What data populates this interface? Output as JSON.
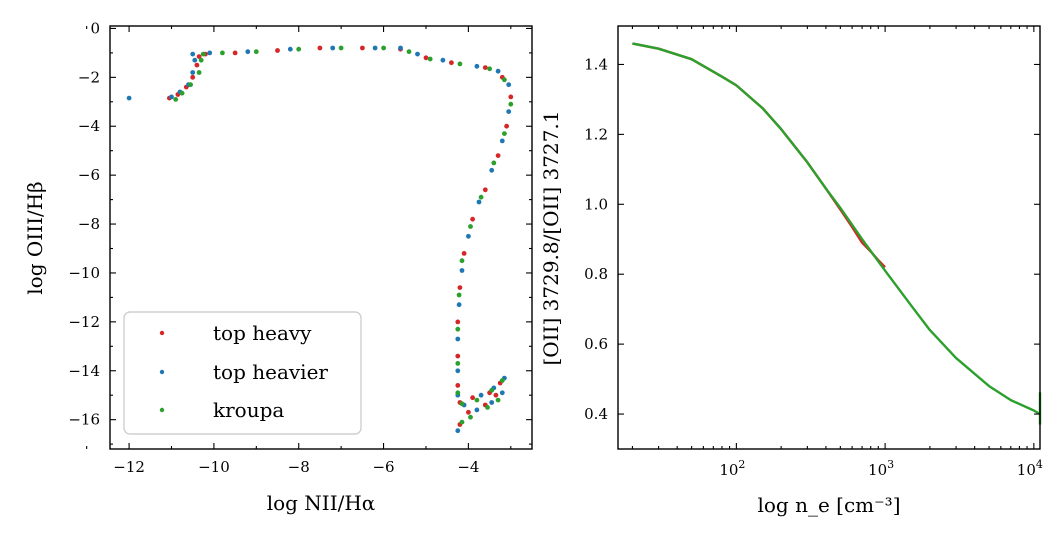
{
  "chart_data": [
    {
      "type": "scatter",
      "title": "",
      "xlabel": "log NII/Hα",
      "ylabel": "log OIII/Hβ",
      "xlim": [
        -12.45,
        -2.5
      ],
      "ylim": [
        -17.2,
        0.1
      ],
      "xticks": [
        -12,
        -10,
        -8,
        -6,
        -4
      ],
      "yticks": [
        0,
        -2,
        -4,
        -6,
        -8,
        -10,
        -12,
        -14,
        -16
      ],
      "tick_labels_x": [
        "−12",
        "−10",
        "−8",
        "−6",
        "−4"
      ],
      "tick_labels_y": [
        "0",
        "−2",
        "−4",
        "−6",
        "−8",
        "−10",
        "−12",
        "−14",
        "−16"
      ],
      "legend": {
        "placement": "lower-left"
      },
      "series": [
        {
          "name": "top heavy",
          "color": "#d62728",
          "points": [
            [
              -11.05,
              -2.85
            ],
            [
              -10.85,
              -2.7
            ],
            [
              -10.65,
              -2.4
            ],
            [
              -10.5,
              -2.0
            ],
            [
              -10.4,
              -1.5
            ],
            [
              -10.35,
              -1.15
            ],
            [
              -10.2,
              -1.05
            ],
            [
              -9.5,
              -1.0
            ],
            [
              -8.5,
              -0.9
            ],
            [
              -7.5,
              -0.8
            ],
            [
              -6.5,
              -0.8
            ],
            [
              -5.6,
              -0.85
            ],
            [
              -5.0,
              -1.2
            ],
            [
              -4.4,
              -1.4
            ],
            [
              -3.6,
              -1.6
            ],
            [
              -3.2,
              -2.0
            ],
            [
              -3.0,
              -2.8
            ],
            [
              -3.1,
              -4.0
            ],
            [
              -3.3,
              -5.2
            ],
            [
              -3.6,
              -6.6
            ],
            [
              -3.9,
              -7.8
            ],
            [
              -4.1,
              -9.2
            ],
            [
              -4.2,
              -10.6
            ],
            [
              -4.25,
              -12.0
            ],
            [
              -4.25,
              -13.4
            ],
            [
              -4.25,
              -14.6
            ],
            [
              -4.2,
              -15.3
            ],
            [
              -3.9,
              -15.1
            ],
            [
              -3.5,
              -14.9
            ],
            [
              -3.25,
              -14.5
            ],
            [
              -3.35,
              -15.0
            ],
            [
              -3.6,
              -15.4
            ],
            [
              -4.0,
              -15.7
            ],
            [
              -4.2,
              -16.2
            ]
          ]
        },
        {
          "name": "top heavier",
          "color": "#1f77b4",
          "points": [
            [
              -12.0,
              -2.85
            ],
            [
              -11.0,
              -2.8
            ],
            [
              -10.8,
              -2.6
            ],
            [
              -10.6,
              -2.3
            ],
            [
              -10.5,
              -1.8
            ],
            [
              -10.45,
              -1.3
            ],
            [
              -10.5,
              -1.05
            ],
            [
              -10.1,
              -1.0
            ],
            [
              -9.2,
              -0.95
            ],
            [
              -8.2,
              -0.85
            ],
            [
              -7.2,
              -0.8
            ],
            [
              -6.2,
              -0.8
            ],
            [
              -5.6,
              -0.8
            ],
            [
              -5.2,
              -1.05
            ],
            [
              -4.6,
              -1.3
            ],
            [
              -3.8,
              -1.55
            ],
            [
              -3.3,
              -1.75
            ],
            [
              -3.05,
              -2.3
            ],
            [
              -3.05,
              -3.4
            ],
            [
              -3.2,
              -4.6
            ],
            [
              -3.45,
              -5.8
            ],
            [
              -3.75,
              -7.1
            ],
            [
              -4.0,
              -8.5
            ],
            [
              -4.15,
              -9.9
            ],
            [
              -4.22,
              -11.3
            ],
            [
              -4.25,
              -12.7
            ],
            [
              -4.25,
              -14.0
            ],
            [
              -4.25,
              -15.0
            ],
            [
              -4.1,
              -15.4
            ],
            [
              -3.7,
              -15.0
            ],
            [
              -3.4,
              -14.7
            ],
            [
              -3.15,
              -14.3
            ],
            [
              -3.2,
              -14.9
            ],
            [
              -3.45,
              -15.3
            ],
            [
              -3.8,
              -15.6
            ],
            [
              -4.25,
              -16.45
            ]
          ]
        },
        {
          "name": "kroupa",
          "color": "#2ca02c",
          "points": [
            [
              -10.9,
              -2.9
            ],
            [
              -10.75,
              -2.65
            ],
            [
              -10.55,
              -2.3
            ],
            [
              -10.35,
              -1.8
            ],
            [
              -10.3,
              -1.3
            ],
            [
              -10.25,
              -1.05
            ],
            [
              -9.8,
              -1.0
            ],
            [
              -9.0,
              -0.95
            ],
            [
              -8.0,
              -0.85
            ],
            [
              -7.0,
              -0.8
            ],
            [
              -6.0,
              -0.8
            ],
            [
              -5.4,
              -0.95
            ],
            [
              -4.9,
              -1.25
            ],
            [
              -4.2,
              -1.45
            ],
            [
              -3.5,
              -1.65
            ],
            [
              -3.15,
              -2.1
            ],
            [
              -3.0,
              -3.1
            ],
            [
              -3.15,
              -4.3
            ],
            [
              -3.4,
              -5.5
            ],
            [
              -3.7,
              -6.9
            ],
            [
              -3.95,
              -8.1
            ],
            [
              -4.15,
              -9.5
            ],
            [
              -4.22,
              -10.9
            ],
            [
              -4.25,
              -12.3
            ],
            [
              -4.25,
              -13.7
            ],
            [
              -4.25,
              -14.9
            ],
            [
              -4.15,
              -15.35
            ],
            [
              -3.8,
              -15.2
            ],
            [
              -3.45,
              -14.8
            ],
            [
              -3.2,
              -14.4
            ],
            [
              -3.3,
              -15.2
            ],
            [
              -3.55,
              -15.5
            ],
            [
              -3.95,
              -15.9
            ],
            [
              -4.15,
              -16.1
            ]
          ]
        }
      ]
    },
    {
      "type": "line",
      "title": "",
      "xlabel": "log n_e [cm⁻³]",
      "ylabel": "[OII] 3729.8/[OII] 3727.1",
      "x_scale": "log",
      "xlim": [
        16,
        11000
      ],
      "ylim": [
        0.3,
        1.51
      ],
      "xticks": [
        100,
        1000,
        10000
      ],
      "tick_labels_x_base": "10",
      "tick_labels_x_exp": [
        "2",
        "3",
        "4"
      ],
      "yticks": [
        0.4,
        0.6,
        0.8,
        1.0,
        1.2,
        1.4
      ],
      "tick_labels_y": [
        "0.4",
        "0.6",
        "0.8",
        "1.0",
        "1.2",
        "1.4"
      ],
      "series": [
        {
          "color": "#d62728",
          "x": [
            20,
            30,
            50,
            80,
            100,
            150,
            200,
            300,
            400,
            500,
            600,
            700,
            800,
            900,
            1000
          ],
          "y": [
            1.46,
            1.445,
            1.415,
            1.365,
            1.34,
            1.275,
            1.215,
            1.12,
            1.045,
            0.985,
            0.935,
            0.89,
            0.865,
            0.84,
            0.82
          ]
        },
        {
          "color": "#2ca02c",
          "x": [
            20,
            30,
            50,
            80,
            100,
            150,
            200,
            300,
            400,
            500,
            700,
            1000,
            1500,
            2000,
            3000,
            5000,
            7000,
            10000,
            11000,
            11000,
            11000
          ],
          "y": [
            1.46,
            1.445,
            1.415,
            1.365,
            1.34,
            1.275,
            1.215,
            1.12,
            1.045,
            0.99,
            0.9,
            0.81,
            0.71,
            0.64,
            0.56,
            0.48,
            0.44,
            0.41,
            0.4,
            0.46,
            0.37
          ]
        }
      ]
    }
  ]
}
